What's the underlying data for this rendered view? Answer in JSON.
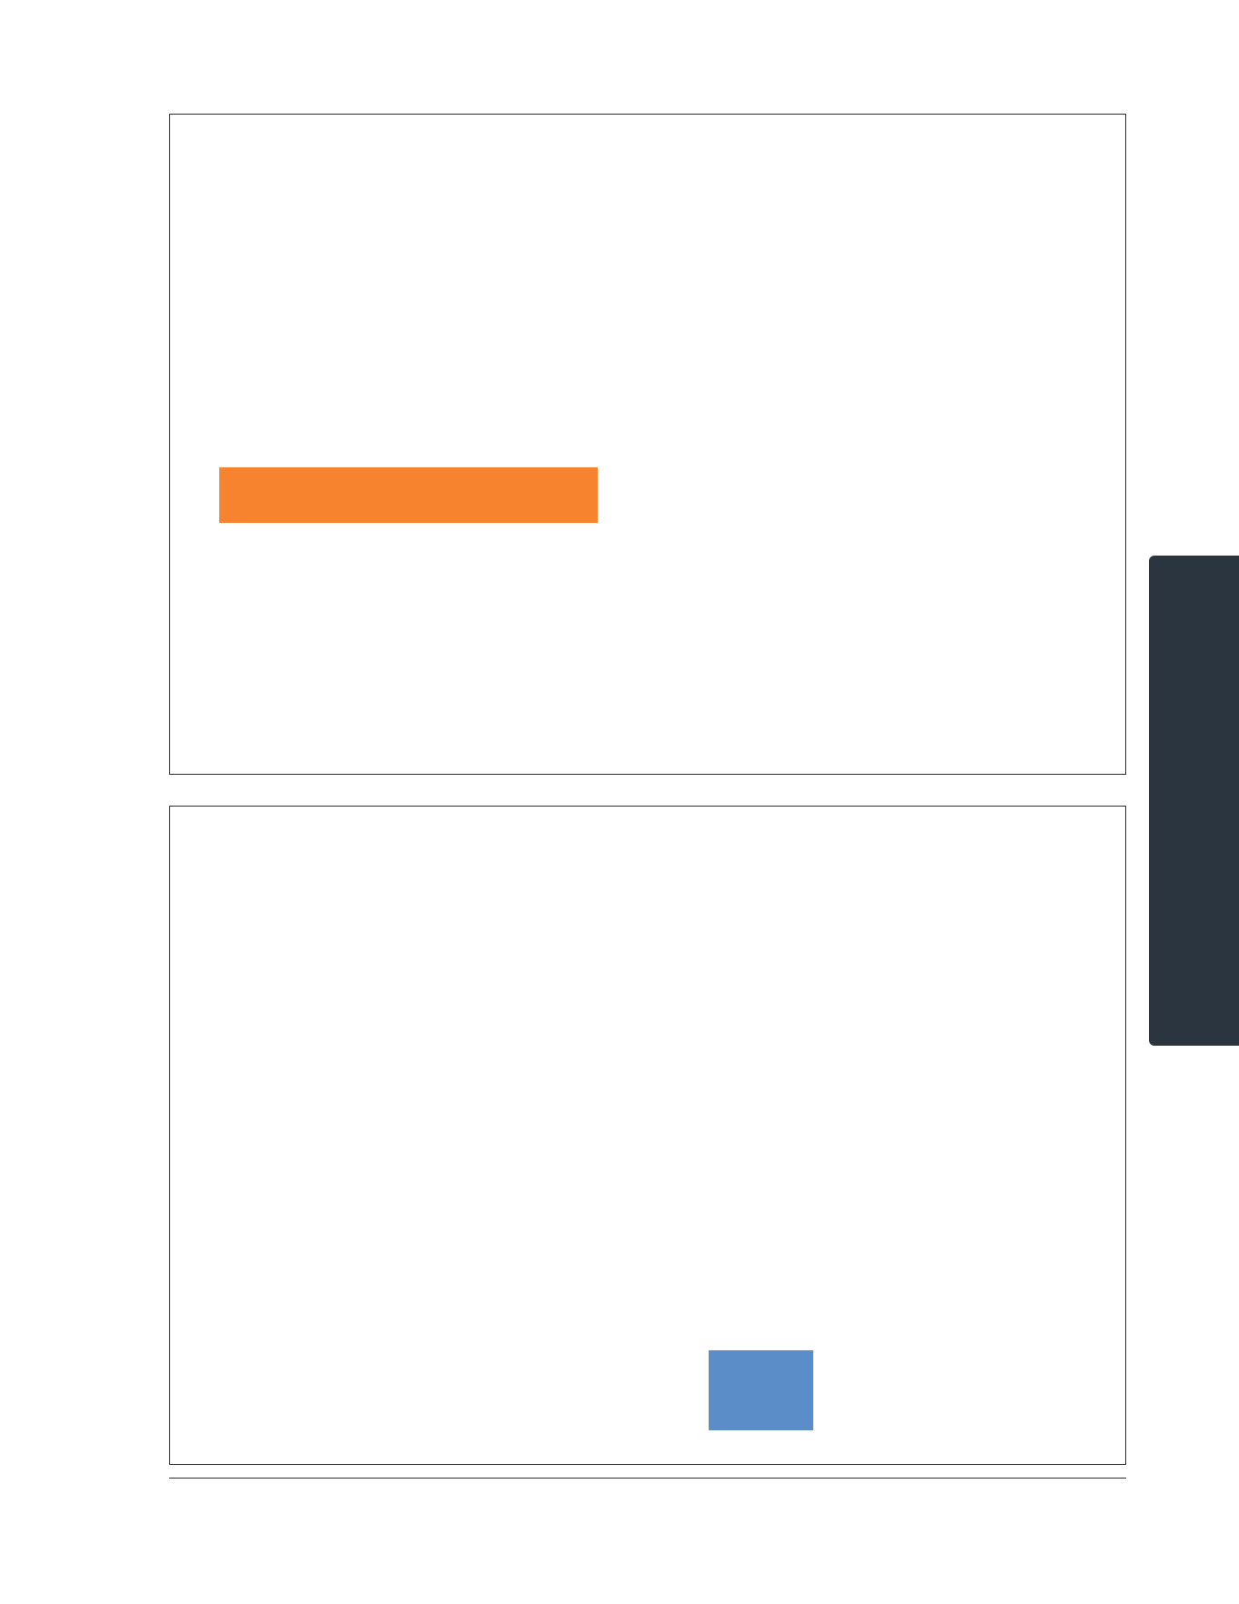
{
  "colors": {
    "orange_bar": "#F7832F",
    "blue_block": "#5B8DC8",
    "side_tab": "#2B3540",
    "frame_border": "#2B2B2B"
  },
  "slides": [
    {
      "id": "slide-1",
      "elements": [
        "orange-bar"
      ]
    },
    {
      "id": "slide-2",
      "elements": [
        "blue-block"
      ]
    }
  ],
  "side_tab": {
    "label": ""
  }
}
